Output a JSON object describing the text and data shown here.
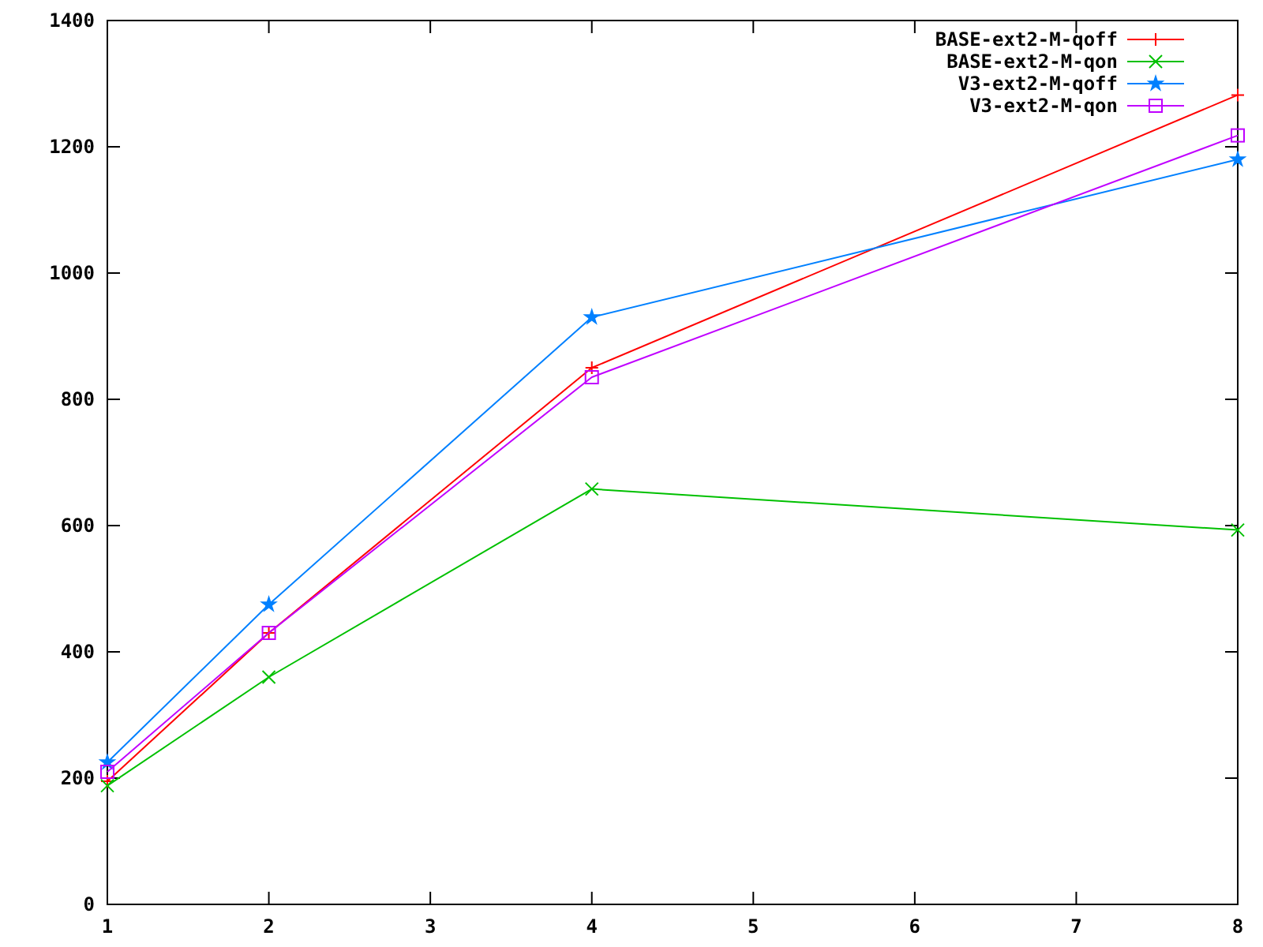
{
  "chart_data": {
    "type": "line",
    "x": [
      1,
      2,
      4,
      8
    ],
    "xlim": [
      1,
      8
    ],
    "xticks": [
      1,
      2,
      3,
      4,
      5,
      6,
      7,
      8
    ],
    "ylim": [
      0,
      1400
    ],
    "yticks": [
      0,
      200,
      400,
      600,
      800,
      1000,
      1200,
      1400
    ],
    "grid": false,
    "legend": "top right",
    "line_style": "solid",
    "series": [
      {
        "name": "BASE-ext2-M-qoff",
        "color": "#ff0000",
        "marker": "plus",
        "values": [
          195,
          430,
          850,
          1282
        ]
      },
      {
        "name": "BASE-ext2-M-qon",
        "color": "#00c000",
        "marker": "cross",
        "values": [
          188,
          360,
          658,
          593
        ]
      },
      {
        "name": "V3-ext2-M-qoff",
        "color": "#0080ff",
        "marker": "star",
        "values": [
          225,
          475,
          930,
          1180
        ]
      },
      {
        "name": "V3-ext2-M-qon",
        "color": "#c000ff",
        "marker": "square",
        "values": [
          210,
          430,
          835,
          1218
        ]
      }
    ]
  }
}
